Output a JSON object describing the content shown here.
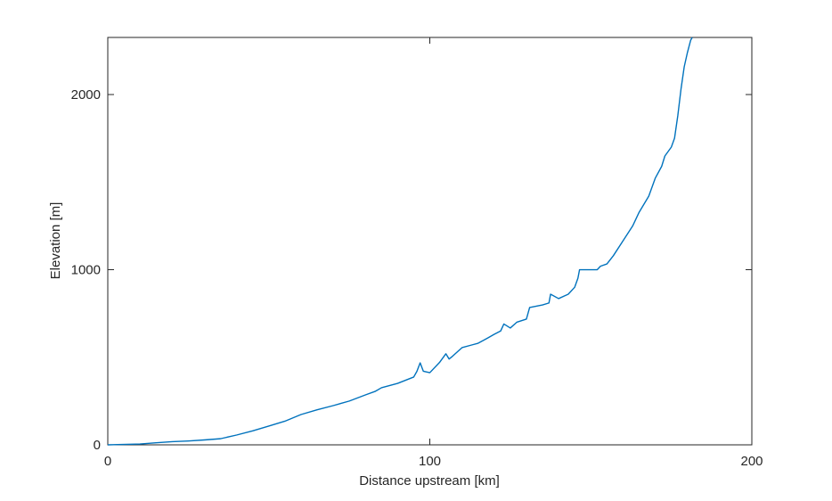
{
  "chart_data": {
    "type": "line",
    "x_label": "Distance upstream [km]",
    "y_label": "Elevation [m]",
    "x": [
      0,
      10,
      15,
      20,
      25,
      30,
      35,
      40,
      45,
      50,
      55,
      60,
      65,
      70,
      75,
      80,
      83,
      85,
      90,
      95,
      96,
      97,
      98,
      100,
      103,
      105,
      106,
      107,
      110,
      113,
      115,
      118,
      120,
      122,
      123,
      125,
      127,
      130,
      131,
      135,
      137,
      137.5,
      140,
      143,
      145,
      146,
      146.5,
      150,
      152,
      153,
      155,
      157,
      160,
      163,
      165,
      168,
      170,
      172,
      173,
      175,
      176,
      177,
      178,
      179,
      180,
      181,
      181.5
    ],
    "series": [
      {
        "name": "Elevation",
        "color": "#0072bd",
        "values": [
          0,
          5,
          12,
          18,
          22,
          28,
          35,
          56,
          80,
          107,
          135,
          173,
          200,
          224,
          250,
          285,
          305,
          326,
          351,
          387,
          420,
          468,
          420,
          412,
          470,
          520,
          490,
          505,
          555,
          570,
          580,
          610,
          631,
          650,
          690,
          667,
          700,
          718,
          784,
          799,
          810,
          860,
          835,
          860,
          900,
          952,
          1000,
          1000,
          1000,
          1020,
          1033,
          1080,
          1165,
          1250,
          1328,
          1420,
          1522,
          1590,
          1649,
          1700,
          1751,
          1878,
          2030,
          2158,
          2240,
          2310,
          2326
        ]
      }
    ],
    "xlim": [
      0,
      200
    ],
    "ylim": [
      0,
      2326
    ],
    "xticks": [
      0,
      100,
      200
    ],
    "yticks": [
      0,
      1000,
      2000
    ]
  }
}
